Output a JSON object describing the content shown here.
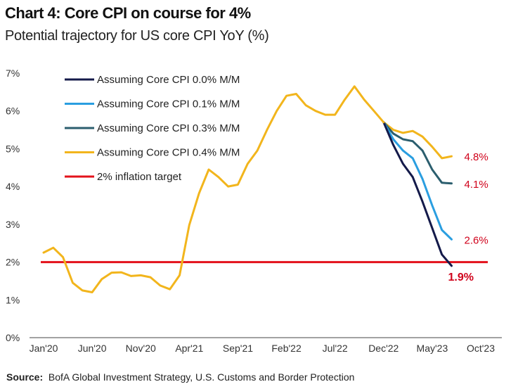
{
  "title": "Chart 4: Core CPI on course for 4%",
  "subtitle": "Potential trajectory for US core CPI YoY (%)",
  "source_label": "Source:",
  "source_text": "BofA Global Investment Strategy, U.S. Customs and Border Protection",
  "colors": {
    "navy": "#141a4a",
    "lightblue": "#2a9ee0",
    "teal": "#2b5e6e",
    "gold": "#f2b51c",
    "red": "#e3121b"
  },
  "chart_data": {
    "type": "line",
    "x_ticks": [
      "Jan'20",
      "Jun'20",
      "Nov'20",
      "Apr'21",
      "Sep'21",
      "Feb'22",
      "Jul'22",
      "Dec'22",
      "May'23",
      "Oct'23"
    ],
    "y_ticks": [
      "0%",
      "1%",
      "2%",
      "3%",
      "4%",
      "5%",
      "6%",
      "7%"
    ],
    "ylim": [
      0,
      7
    ],
    "x_range_months": [
      "2020-01",
      "2023-10"
    ],
    "historical": {
      "name": "",
      "color": "#f2b51c",
      "points": [
        [
          "2020-01",
          2.25
        ],
        [
          "2020-02",
          2.38
        ],
        [
          "2020-03",
          2.13
        ],
        [
          "2020-04",
          1.45
        ],
        [
          "2020-05",
          1.25
        ],
        [
          "2020-06",
          1.2
        ],
        [
          "2020-07",
          1.55
        ],
        [
          "2020-08",
          1.72
        ],
        [
          "2020-09",
          1.73
        ],
        [
          "2020-10",
          1.63
        ],
        [
          "2020-11",
          1.65
        ],
        [
          "2020-12",
          1.6
        ],
        [
          "2021-01",
          1.38
        ],
        [
          "2021-02",
          1.28
        ],
        [
          "2021-03",
          1.65
        ],
        [
          "2021-04",
          2.98
        ],
        [
          "2021-05",
          3.82
        ],
        [
          "2021-06",
          4.45
        ],
        [
          "2021-07",
          4.25
        ],
        [
          "2021-08",
          4.0
        ],
        [
          "2021-09",
          4.05
        ],
        [
          "2021-10",
          4.6
        ],
        [
          "2021-11",
          4.95
        ],
        [
          "2021-12",
          5.5
        ],
        [
          "2022-01",
          6.0
        ],
        [
          "2022-02",
          6.4
        ],
        [
          "2022-03",
          6.45
        ],
        [
          "2022-04",
          6.15
        ],
        [
          "2022-05",
          6.0
        ],
        [
          "2022-06",
          5.9
        ],
        [
          "2022-07",
          5.9
        ],
        [
          "2022-08",
          6.3
        ],
        [
          "2022-09",
          6.65
        ],
        [
          "2022-10",
          6.3
        ],
        [
          "2022-11",
          6.0
        ],
        [
          "2022-12",
          5.7
        ]
      ]
    },
    "series": [
      {
        "name": "Assuming Core CPI 0.0% M/M",
        "color": "#141a4a",
        "points": [
          [
            "2022-12",
            5.7
          ],
          [
            "2023-01",
            5.1
          ],
          [
            "2023-02",
            4.6
          ],
          [
            "2023-03",
            4.25
          ],
          [
            "2023-04",
            3.6
          ],
          [
            "2023-05",
            2.9
          ],
          [
            "2023-06",
            2.2
          ],
          [
            "2023-07",
            1.9
          ]
        ],
        "end_label": "1.9%"
      },
      {
        "name": "Assuming Core CPI 0.1% M/M",
        "color": "#2a9ee0",
        "points": [
          [
            "2022-12",
            5.7
          ],
          [
            "2023-01",
            5.25
          ],
          [
            "2023-02",
            4.95
          ],
          [
            "2023-03",
            4.75
          ],
          [
            "2023-04",
            4.2
          ],
          [
            "2023-05",
            3.5
          ],
          [
            "2023-06",
            2.85
          ],
          [
            "2023-07",
            2.6
          ]
        ],
        "end_label": "2.6%"
      },
      {
        "name": "Assuming Core CPI 0.3% M/M",
        "color": "#2b5e6e",
        "points": [
          [
            "2022-12",
            5.7
          ],
          [
            "2023-01",
            5.4
          ],
          [
            "2023-02",
            5.25
          ],
          [
            "2023-03",
            5.2
          ],
          [
            "2023-04",
            4.95
          ],
          [
            "2023-05",
            4.45
          ],
          [
            "2023-06",
            4.1
          ],
          [
            "2023-07",
            4.08
          ]
        ],
        "end_label": "4.1%"
      },
      {
        "name": "Assuming Core CPI 0.4% M/M",
        "color": "#f2b51c",
        "points": [
          [
            "2022-12",
            5.7
          ],
          [
            "2023-01",
            5.5
          ],
          [
            "2023-02",
            5.42
          ],
          [
            "2023-03",
            5.47
          ],
          [
            "2023-04",
            5.32
          ],
          [
            "2023-05",
            5.05
          ],
          [
            "2023-06",
            4.75
          ],
          [
            "2023-07",
            4.8
          ]
        ],
        "end_label": "4.8%"
      }
    ],
    "target": {
      "name": "2% inflation target",
      "value": 2.0,
      "color": "#e3121b"
    },
    "legend": "top-left",
    "grid": false
  }
}
